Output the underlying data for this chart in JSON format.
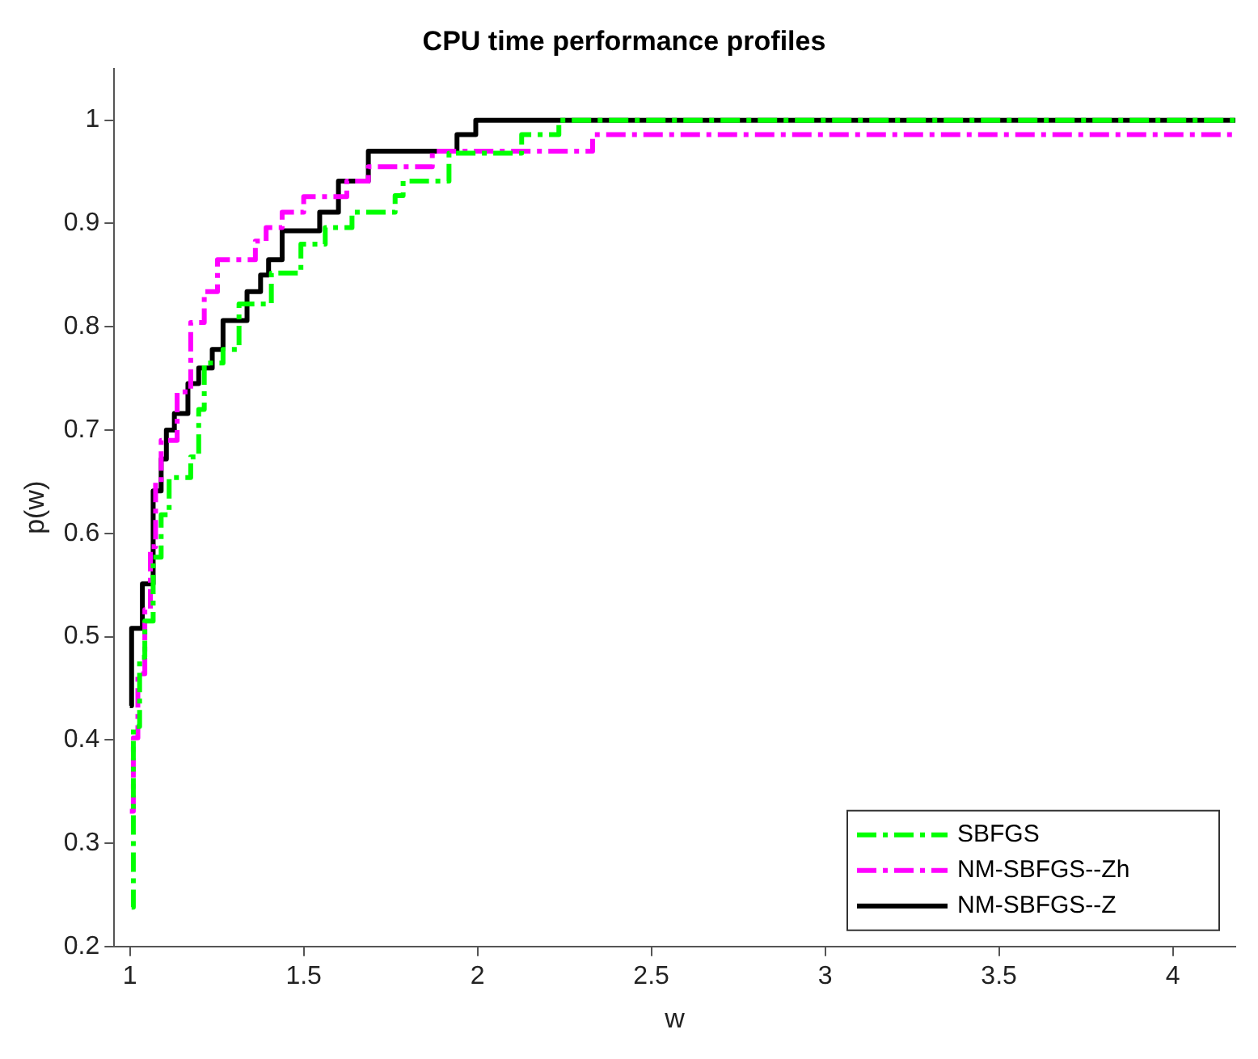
{
  "chart_data": {
    "type": "step",
    "title": "CPU time performance profiles",
    "xlabel": "w",
    "ylabel": "p(w)",
    "xlim": [
      0.955,
      4.18
    ],
    "ylim": [
      0.2,
      1.05
    ],
    "xticks": [
      1,
      1.5,
      2,
      2.5,
      3,
      3.5,
      4
    ],
    "yticks": [
      0.2,
      0.3,
      0.4,
      0.5,
      0.6,
      0.7,
      0.8,
      0.9,
      1
    ],
    "grid": false,
    "legend": "bottom right",
    "series": [
      {
        "name": "SBFGS",
        "color": "#00ff00",
        "line_style": "dashdot",
        "x": [
          1.005,
          1.01,
          1.028,
          1.043,
          1.067,
          1.09,
          1.113,
          1.175,
          1.198,
          1.214,
          1.268,
          1.314,
          1.407,
          1.492,
          1.562,
          1.639,
          1.763,
          1.786,
          1.918,
          2.127,
          2.234,
          4.18
        ],
        "values": [
          0.238,
          0.413,
          0.48,
          0.515,
          0.577,
          0.618,
          0.654,
          0.674,
          0.72,
          0.765,
          0.778,
          0.822,
          0.852,
          0.88,
          0.896,
          0.911,
          0.927,
          0.941,
          0.968,
          0.986,
          1,
          1
        ]
      },
      {
        "name": "NM-SBFGS--Zh",
        "color": "#ff00ff",
        "line_style": "dashdot",
        "x": [
          1.0,
          1.01,
          1.023,
          1.043,
          1.059,
          1.074,
          1.09,
          1.136,
          1.175,
          1.214,
          1.252,
          1.361,
          1.392,
          1.438,
          1.5,
          1.624,
          1.686,
          1.87,
          2.331,
          4.18
        ],
        "values": [
          0.331,
          0.402,
          0.464,
          0.526,
          0.587,
          0.649,
          0.69,
          0.737,
          0.804,
          0.834,
          0.865,
          0.883,
          0.896,
          0.911,
          0.926,
          0.941,
          0.955,
          0.97,
          0.986,
          0.986
        ]
      },
      {
        "name": "NM-SBFGS--Z",
        "color": "#000000",
        "line_style": "solid",
        "x": [
          1.0,
          1.005,
          1.028,
          1.036,
          1.059,
          1.067,
          1.09,
          1.105,
          1.128,
          1.167,
          1.198,
          1.237,
          1.268,
          1.337,
          1.376,
          1.399,
          1.438,
          1.546,
          1.6,
          1.686,
          1.941,
          1.995,
          4.18
        ],
        "values": [
          0.433,
          0.508,
          0.508,
          0.551,
          0.551,
          0.641,
          0.672,
          0.7,
          0.716,
          0.745,
          0.76,
          0.778,
          0.806,
          0.834,
          0.85,
          0.865,
          0.893,
          0.911,
          0.941,
          0.97,
          0.986,
          1,
          1
        ]
      }
    ]
  }
}
